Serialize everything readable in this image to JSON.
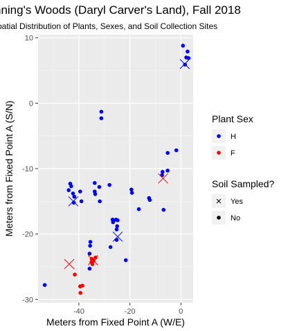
{
  "chart_data": {
    "type": "scatter",
    "title": "nning's Woods (Daryl Carver's Land), Fall 2018",
    "subtitle": "patial Distribution of Plants, Sexes, and Soil Collection Sites",
    "xlabel": "Meters from Fixed Point A (W/E)",
    "ylabel": "Meters from Fixed Point A (S/N)",
    "xlim": [
      -56,
      4.8
    ],
    "ylim": [
      -30.5,
      10.5
    ],
    "xticks": [
      -40,
      -20,
      0
    ],
    "xtick_labels": [
      "-40",
      "-20",
      "0"
    ],
    "yticks": [
      10,
      0,
      -10,
      -20,
      -30
    ],
    "ytick_labels": [
      "10",
      "0",
      "-10",
      "-20",
      "-30"
    ],
    "grid": true,
    "legend_sex": {
      "title": "Plant Sex",
      "items": [
        {
          "label": "H",
          "color": "#0000ff"
        },
        {
          "label": "F",
          "color": "#ff0000"
        }
      ]
    },
    "legend_soil": {
      "title": "Soil Sampled?",
      "items": [
        {
          "label": "Yes",
          "shape": "cross"
        },
        {
          "label": "No",
          "shape": "dot"
        }
      ]
    },
    "colors": {
      "H": "#0000ff",
      "F": "#ff0000"
    },
    "points": [
      {
        "x": 0.8,
        "y": 8.8,
        "sex": "H",
        "soil": "No"
      },
      {
        "x": 2.6,
        "y": 7.9,
        "sex": "H",
        "soil": "No"
      },
      {
        "x": 2.1,
        "y": 7.0,
        "sex": "H",
        "soil": "No"
      },
      {
        "x": 3.0,
        "y": 6.9,
        "sex": "H",
        "soil": "No"
      },
      {
        "x": 1.5,
        "y": 6.0,
        "sex": "H",
        "soil": "Yes"
      },
      {
        "x": 1.6,
        "y": 5.9,
        "sex": "H",
        "soil": "No"
      },
      {
        "x": -31.2,
        "y": -1.3,
        "sex": "H",
        "soil": "No"
      },
      {
        "x": -31.2,
        "y": -2.3,
        "sex": "H",
        "soil": "No"
      },
      {
        "x": -1.8,
        "y": -7.2,
        "sex": "H",
        "soil": "No"
      },
      {
        "x": -5.2,
        "y": -7.6,
        "sex": "H",
        "soil": "No"
      },
      {
        "x": -5.2,
        "y": -10.3,
        "sex": "H",
        "soil": "No"
      },
      {
        "x": -7.2,
        "y": -10.5,
        "sex": "H",
        "soil": "No"
      },
      {
        "x": -7.4,
        "y": -11.0,
        "sex": "H",
        "soil": "No"
      },
      {
        "x": -43.4,
        "y": -12.3,
        "sex": "H",
        "soil": "No"
      },
      {
        "x": -43.0,
        "y": -12.7,
        "sex": "H",
        "soil": "No"
      },
      {
        "x": -44.0,
        "y": -13.3,
        "sex": "H",
        "soil": "No"
      },
      {
        "x": -39.5,
        "y": -13.5,
        "sex": "H",
        "soil": "No"
      },
      {
        "x": -42.3,
        "y": -13.8,
        "sex": "H",
        "soil": "No"
      },
      {
        "x": -41.8,
        "y": -14.3,
        "sex": "H",
        "soil": "No"
      },
      {
        "x": -42.2,
        "y": -15.0,
        "sex": "H",
        "soil": "Yes"
      },
      {
        "x": -42.0,
        "y": -15.2,
        "sex": "H",
        "soil": "No"
      },
      {
        "x": -39.0,
        "y": -15.0,
        "sex": "H",
        "soil": "No"
      },
      {
        "x": -33.8,
        "y": -12.2,
        "sex": "H",
        "soil": "No"
      },
      {
        "x": -32.0,
        "y": -12.8,
        "sex": "H",
        "soil": "No"
      },
      {
        "x": -28.0,
        "y": -12.5,
        "sex": "H",
        "soil": "No"
      },
      {
        "x": -33.8,
        "y": -13.5,
        "sex": "H",
        "soil": "No"
      },
      {
        "x": -33.6,
        "y": -13.9,
        "sex": "H",
        "soil": "No"
      },
      {
        "x": -31.8,
        "y": -15.0,
        "sex": "H",
        "soil": "No"
      },
      {
        "x": -19.4,
        "y": -13.2,
        "sex": "H",
        "soil": "No"
      },
      {
        "x": -19.2,
        "y": -13.7,
        "sex": "H",
        "soil": "No"
      },
      {
        "x": -12.5,
        "y": -14.5,
        "sex": "H",
        "soil": "No"
      },
      {
        "x": -12.2,
        "y": -14.8,
        "sex": "H",
        "soil": "No"
      },
      {
        "x": -16.5,
        "y": -16.2,
        "sex": "H",
        "soil": "No"
      },
      {
        "x": -6.8,
        "y": -16.3,
        "sex": "H",
        "soil": "No"
      },
      {
        "x": -26.8,
        "y": -17.8,
        "sex": "H",
        "soil": "No"
      },
      {
        "x": -26.3,
        "y": -17.9,
        "sex": "H",
        "soil": "No"
      },
      {
        "x": -25.4,
        "y": -17.8,
        "sex": "H",
        "soil": "No"
      },
      {
        "x": -24.8,
        "y": -17.9,
        "sex": "H",
        "soil": "No"
      },
      {
        "x": -26.6,
        "y": -18.2,
        "sex": "H",
        "soil": "No"
      },
      {
        "x": -25.0,
        "y": -18.8,
        "sex": "H",
        "soil": "No"
      },
      {
        "x": -25.2,
        "y": -19.3,
        "sex": "H",
        "soil": "No"
      },
      {
        "x": -24.8,
        "y": -20.4,
        "sex": "H",
        "soil": "Yes"
      },
      {
        "x": -25.2,
        "y": -20.9,
        "sex": "H",
        "soil": "No"
      },
      {
        "x": -35.5,
        "y": -21.2,
        "sex": "H",
        "soil": "No"
      },
      {
        "x": -35.6,
        "y": -21.8,
        "sex": "H",
        "soil": "No"
      },
      {
        "x": -27.6,
        "y": -22.0,
        "sex": "H",
        "soil": "No"
      },
      {
        "x": -35.8,
        "y": -23.0,
        "sex": "H",
        "soil": "No"
      },
      {
        "x": -21.6,
        "y": -24.0,
        "sex": "H",
        "soil": "No"
      },
      {
        "x": -35.8,
        "y": -25.3,
        "sex": "H",
        "soil": "No"
      },
      {
        "x": -53.4,
        "y": -27.8,
        "sex": "H",
        "soil": "No"
      },
      {
        "x": -7.0,
        "y": -11.5,
        "sex": "F",
        "soil": "Yes"
      },
      {
        "x": -43.8,
        "y": -24.6,
        "sex": "F",
        "soil": "Yes"
      },
      {
        "x": -34.5,
        "y": -24.0,
        "sex": "F",
        "soil": "Yes"
      },
      {
        "x": -33.5,
        "y": -23.6,
        "sex": "F",
        "soil": "No"
      },
      {
        "x": -35.0,
        "y": -23.8,
        "sex": "F",
        "soil": "No"
      },
      {
        "x": -35.1,
        "y": -24.3,
        "sex": "F",
        "soil": "No"
      },
      {
        "x": -34.7,
        "y": -24.6,
        "sex": "F",
        "soil": "No"
      },
      {
        "x": -34.2,
        "y": -24.1,
        "sex": "F",
        "soil": "No"
      },
      {
        "x": -41.6,
        "y": -26.2,
        "sex": "F",
        "soil": "No"
      },
      {
        "x": -39.5,
        "y": -28.0,
        "sex": "F",
        "soil": "No"
      },
      {
        "x": -38.6,
        "y": -27.9,
        "sex": "F",
        "soil": "No"
      },
      {
        "x": -39.4,
        "y": -29.0,
        "sex": "F",
        "soil": "No"
      }
    ]
  }
}
